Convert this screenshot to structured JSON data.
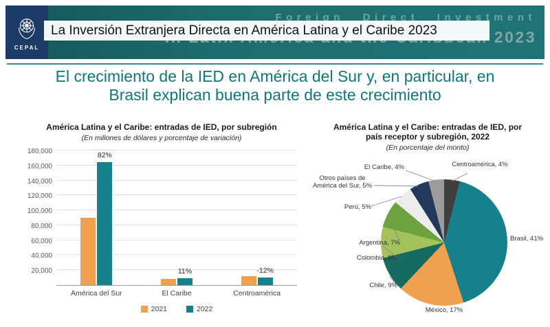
{
  "video": {
    "title_overlay": "La Inversión Extranjera Directa en América Latina y el Caribe 2023"
  },
  "banner": {
    "line1": "Foreign Direct Investment",
    "line2": "in Latin America and the Caribbean 2023",
    "logo": "CEPAL",
    "bg_color": "#1e6c6e"
  },
  "slide": {
    "title_line1": "El crecimiento de la IED en América del Sur y, en particular, en",
    "title_line2": "Brasil explican buena parte de este crecimiento",
    "title_color": "#0e7779"
  },
  "chart_data": [
    {
      "type": "bar",
      "title": "América Latina y el Caribe: entradas de IED, por subregión",
      "subtitle": "(En millones de dólares y porcentaje de variación)",
      "categories": [
        "América del Sur",
        "El Caribe",
        "Centroamérica"
      ],
      "series": [
        {
          "name": "2021",
          "color": "#F0A14F",
          "values": [
            90000,
            8000,
            11500
          ]
        },
        {
          "name": "2022",
          "color": "#17808D",
          "values": [
            164000,
            8900,
            10100
          ]
        }
      ],
      "pct_labels": [
        "82%",
        "11%",
        "-12%"
      ],
      "ylim": [
        0,
        180000
      ],
      "grid": true,
      "legend_position": "bottom",
      "yticks": [
        {
          "value": 180000,
          "label": "180,000"
        },
        {
          "value": 160000,
          "label": "160,000"
        },
        {
          "value": 140000,
          "label": "140,000"
        },
        {
          "value": 120000,
          "label": "120,000"
        },
        {
          "value": 100000,
          "label": "100,000"
        },
        {
          "value": 80000,
          "label": "80,000"
        },
        {
          "value": 60000,
          "label": "60,000"
        },
        {
          "value": 40000,
          "label": "40,000"
        },
        {
          "value": 20000,
          "label": "20,000"
        }
      ]
    },
    {
      "type": "pie",
      "title": "América Latina y el Caribe: entradas de IED, por país receptor y subregión, 2022",
      "subtitle": "(En porcentaje del monto)",
      "slices": [
        {
          "label": "Centroamérica",
          "pct": 4,
          "color": "#3F3F3F",
          "callout": "Centroamérica, 4%"
        },
        {
          "label": "Brasil",
          "pct": 41,
          "color": "#17808D",
          "callout": "Brasil, 41%"
        },
        {
          "label": "México",
          "pct": 17,
          "color": "#F0A14F",
          "callout": "México, 17%"
        },
        {
          "label": "Chile",
          "pct": 9,
          "color": "#156B60",
          "callout": "Chile, 9%"
        },
        {
          "label": "Colombia",
          "pct": 8,
          "color": "#A4C25C",
          "callout": "Colombia, 8%"
        },
        {
          "label": "Argentina",
          "pct": 7,
          "color": "#6CA33E",
          "callout": "Argentina, 7%"
        },
        {
          "label": "Perú",
          "pct": 5,
          "color": "#EDEDED",
          "callout": "Perú, 5%"
        },
        {
          "label": "Otros países de América del Sur",
          "pct": 5,
          "color": "#23395B",
          "callout": "Otros países de América del Sur, 5%"
        },
        {
          "label": "El Caribe",
          "pct": 4,
          "color": "#9C9C9C",
          "callout": "El Caribe, 4%"
        }
      ]
    }
  ]
}
